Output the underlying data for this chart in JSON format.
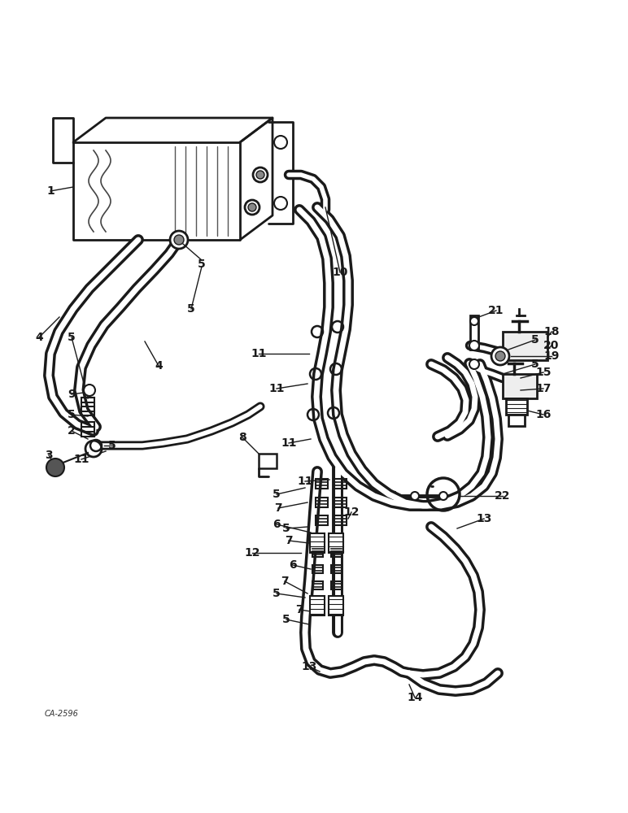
{
  "background_color": "#ffffff",
  "line_color": "#1a1a1a",
  "watermark": "CA-2596",
  "fig_width": 7.72,
  "fig_height": 10.0,
  "dpi": 100
}
